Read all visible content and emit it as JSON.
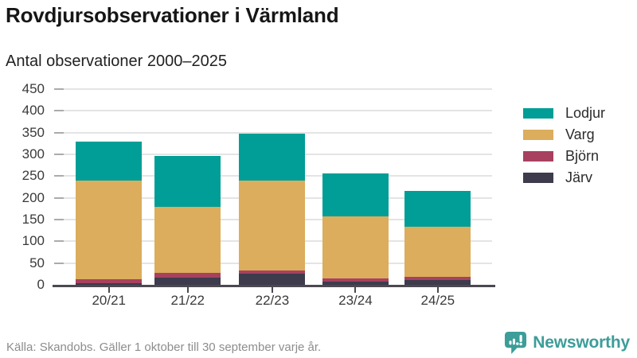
{
  "header": {
    "title": "Rovdjursobservationer i Värmland",
    "subtitle": "Antal observationer 2000–2025"
  },
  "chart_data": {
    "type": "bar",
    "stacked": true,
    "title": "Rovdjursobservationer i Värmland",
    "subtitle": "Antal observationer 2000–2025",
    "categories": [
      "20/21",
      "21/22",
      "22/23",
      "23/24",
      "24/25"
    ],
    "series": [
      {
        "name": "Järv",
        "color": "#3E3B4D",
        "values": [
          3,
          17,
          25,
          7,
          11
        ]
      },
      {
        "name": "Björn",
        "color": "#A8415F",
        "values": [
          9,
          10,
          8,
          7,
          7
        ]
      },
      {
        "name": "Varg",
        "color": "#DBAD5C",
        "values": [
          228,
          152,
          207,
          143,
          116
        ]
      },
      {
        "name": "Lodjur",
        "color": "#009E96",
        "values": [
          90,
          117,
          108,
          99,
          81
        ]
      }
    ],
    "stack_order": "first-series-at-bottom",
    "totals": [
      330,
      296,
      348,
      256,
      215
    ],
    "legend_order": [
      "Lodjur",
      "Varg",
      "Björn",
      "Järv"
    ],
    "legend_position": "right",
    "xlabel": "",
    "ylabel": "",
    "ylim": [
      0,
      450
    ],
    "yticks": [
      0,
      50,
      100,
      150,
      200,
      250,
      300,
      350,
      400,
      450
    ],
    "grid": true,
    "grid_color": "#e4e4e4",
    "axis_color": "#4b4850"
  },
  "footer": {
    "source": "Källa: Skandobs. Gäller 1 oktober till 30 september varje år.",
    "brand": "Newsworthy",
    "brand_color": "#3C9D99"
  }
}
